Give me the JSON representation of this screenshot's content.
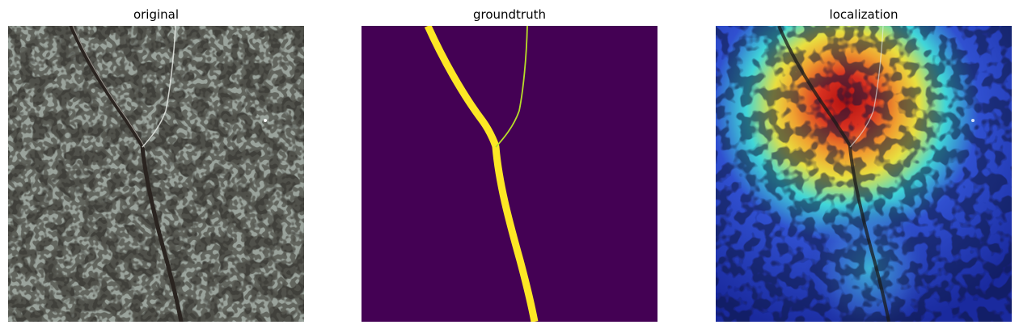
{
  "panels": [
    {
      "title": "original"
    },
    {
      "title": "groundtruth"
    },
    {
      "title": "localization"
    }
  ],
  "colors": {
    "background": "#ffffff",
    "stone_light": "#9aa39c",
    "stone_dark_spot": "#3f3f3a",
    "crack_dark": "#2a2420",
    "mask_background": "#440154",
    "mask_crack": "#fde725",
    "heat_cold": "#1a2a9e",
    "heat_mid_cyan": "#3ad6e0",
    "heat_mid_yellow": "#f0e040",
    "heat_hot": "#c81818"
  }
}
